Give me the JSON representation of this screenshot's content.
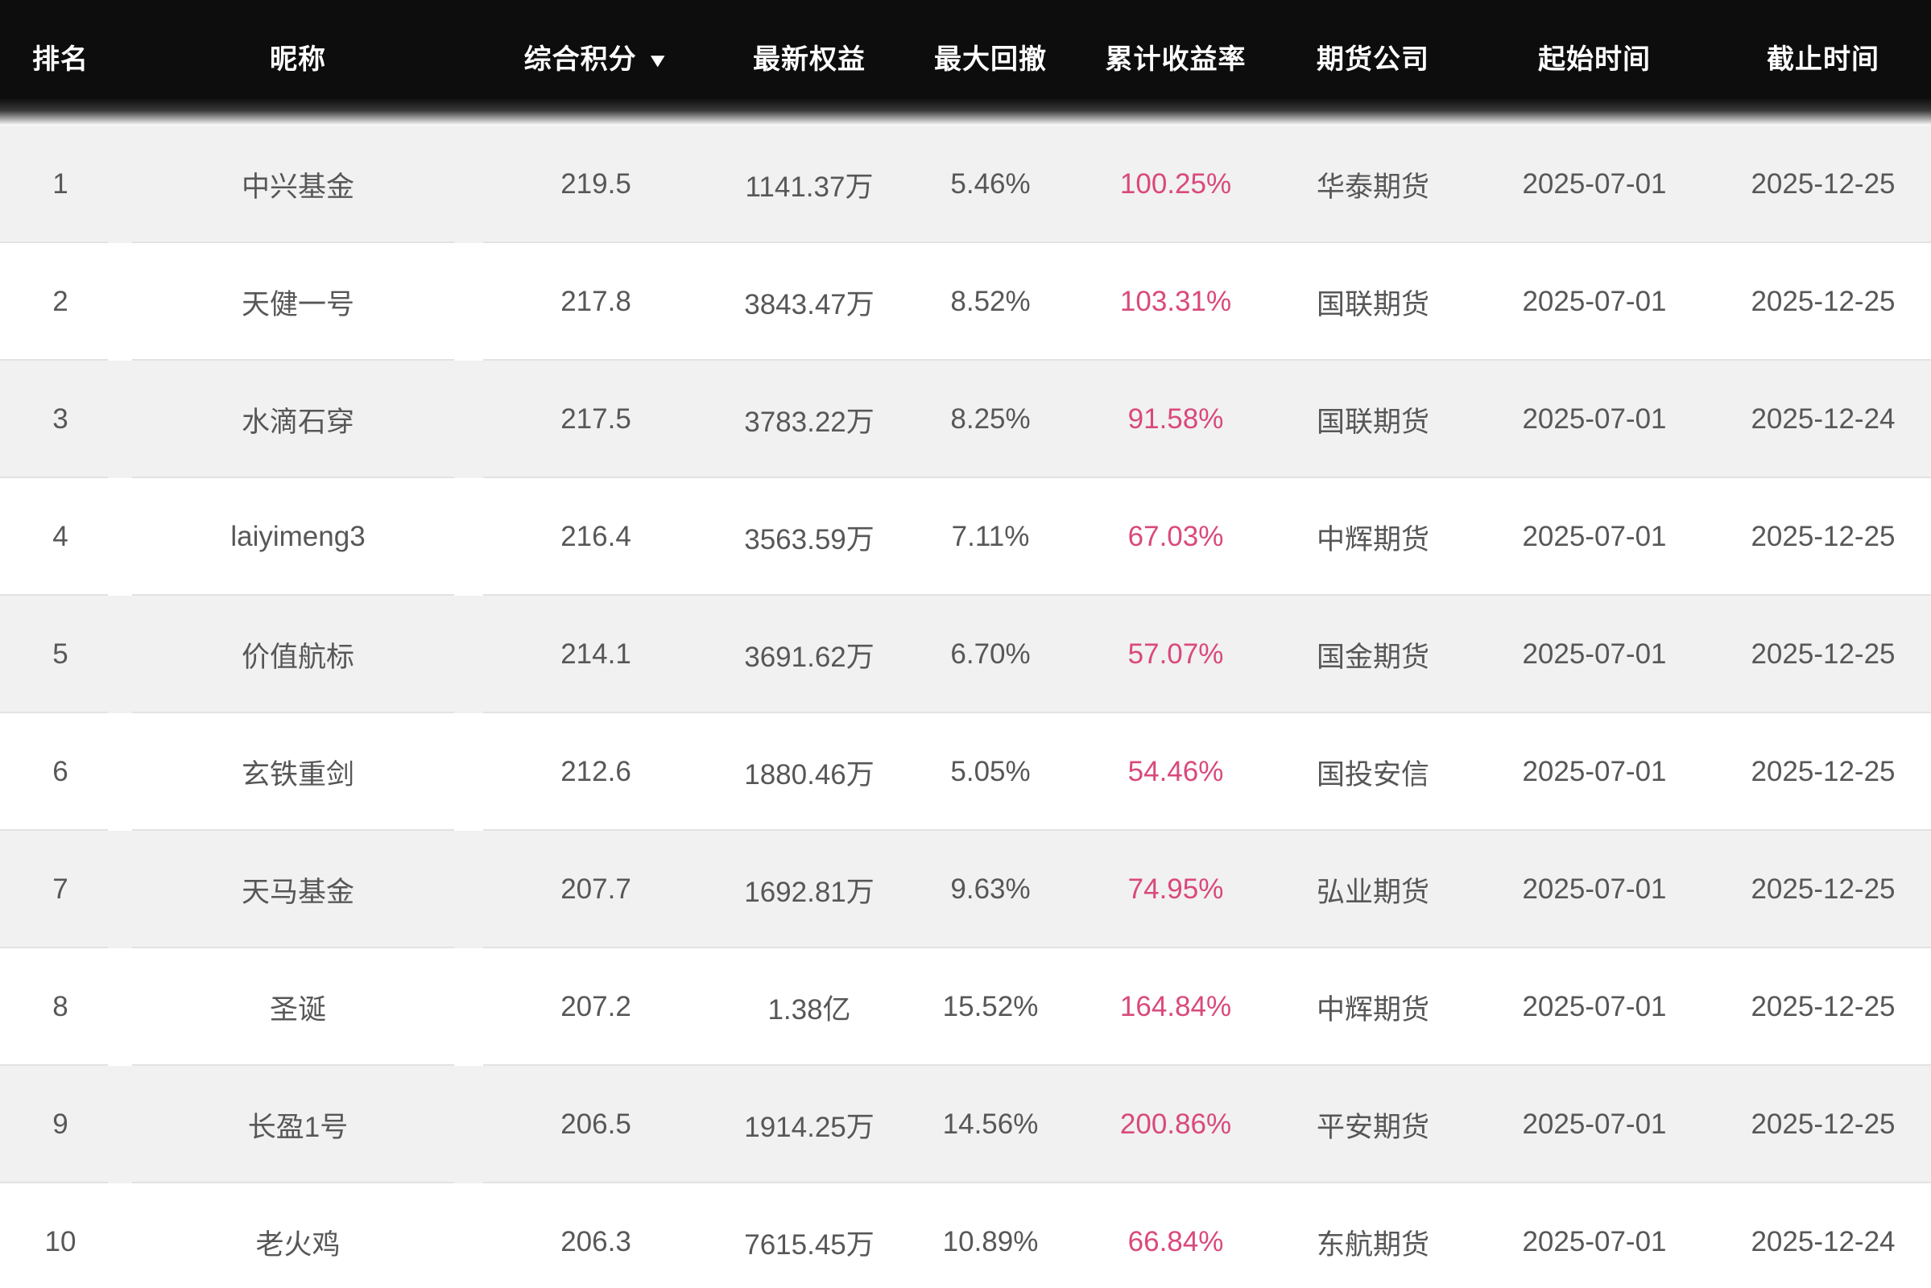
{
  "colors": {
    "header_bg": "#0d0d0d",
    "header_text": "#ffffff",
    "row_bg": "#ffffff",
    "row_alt_bg": "#f1f1f1",
    "border": "#e2e2e2",
    "text": "#575757",
    "accent_pink": "#d9497c"
  },
  "icons": {
    "sort_desc": "▼"
  },
  "table": {
    "columns": [
      {
        "key": "rank",
        "label": "排名",
        "sortable": false,
        "accent": false,
        "sort": null
      },
      {
        "key": "nickname",
        "label": "昵称",
        "sortable": false,
        "accent": false,
        "sort": null
      },
      {
        "key": "score",
        "label": "综合积分",
        "sortable": true,
        "accent": false,
        "sort": "desc"
      },
      {
        "key": "equity",
        "label": "最新权益",
        "sortable": false,
        "accent": false,
        "sort": null
      },
      {
        "key": "drawdown",
        "label": "最大回撤",
        "sortable": false,
        "accent": false,
        "sort": null
      },
      {
        "key": "return_rate",
        "label": "累计收益率",
        "sortable": false,
        "accent": true,
        "sort": null
      },
      {
        "key": "company",
        "label": "期货公司",
        "sortable": false,
        "accent": false,
        "sort": null
      },
      {
        "key": "start_date",
        "label": "起始时间",
        "sortable": false,
        "accent": false,
        "sort": null
      },
      {
        "key": "end_date",
        "label": "截止时间",
        "sortable": false,
        "accent": false,
        "sort": null
      }
    ],
    "rows": [
      {
        "rank": "1",
        "nickname": "中兴基金",
        "score": "219.5",
        "equity": "1141.37万",
        "drawdown": "5.46%",
        "return_rate": "100.25%",
        "company": "华泰期货",
        "start_date": "2025-07-01",
        "end_date": "2025-12-25"
      },
      {
        "rank": "2",
        "nickname": "天健一号",
        "score": "217.8",
        "equity": "3843.47万",
        "drawdown": "8.52%",
        "return_rate": "103.31%",
        "company": "国联期货",
        "start_date": "2025-07-01",
        "end_date": "2025-12-25"
      },
      {
        "rank": "3",
        "nickname": "水滴石穿",
        "score": "217.5",
        "equity": "3783.22万",
        "drawdown": "8.25%",
        "return_rate": "91.58%",
        "company": "国联期货",
        "start_date": "2025-07-01",
        "end_date": "2025-12-24"
      },
      {
        "rank": "4",
        "nickname": "laiyimeng3",
        "score": "216.4",
        "equity": "3563.59万",
        "drawdown": "7.11%",
        "return_rate": "67.03%",
        "company": "中辉期货",
        "start_date": "2025-07-01",
        "end_date": "2025-12-25"
      },
      {
        "rank": "5",
        "nickname": "价值航标",
        "score": "214.1",
        "equity": "3691.62万",
        "drawdown": "6.70%",
        "return_rate": "57.07%",
        "company": "国金期货",
        "start_date": "2025-07-01",
        "end_date": "2025-12-25"
      },
      {
        "rank": "6",
        "nickname": "玄铁重剑",
        "score": "212.6",
        "equity": "1880.46万",
        "drawdown": "5.05%",
        "return_rate": "54.46%",
        "company": "国投安信",
        "start_date": "2025-07-01",
        "end_date": "2025-12-25"
      },
      {
        "rank": "7",
        "nickname": "天马基金",
        "score": "207.7",
        "equity": "1692.81万",
        "drawdown": "9.63%",
        "return_rate": "74.95%",
        "company": "弘业期货",
        "start_date": "2025-07-01",
        "end_date": "2025-12-25"
      },
      {
        "rank": "8",
        "nickname": "圣诞",
        "score": "207.2",
        "equity": "1.38亿",
        "drawdown": "15.52%",
        "return_rate": "164.84%",
        "company": "中辉期货",
        "start_date": "2025-07-01",
        "end_date": "2025-12-25"
      },
      {
        "rank": "9",
        "nickname": "长盈1号",
        "score": "206.5",
        "equity": "1914.25万",
        "drawdown": "14.56%",
        "return_rate": "200.86%",
        "company": "平安期货",
        "start_date": "2025-07-01",
        "end_date": "2025-12-25"
      },
      {
        "rank": "10",
        "nickname": "老火鸡",
        "score": "206.3",
        "equity": "7615.45万",
        "drawdown": "10.89%",
        "return_rate": "66.84%",
        "company": "东航期货",
        "start_date": "2025-07-01",
        "end_date": "2025-12-24"
      }
    ]
  }
}
